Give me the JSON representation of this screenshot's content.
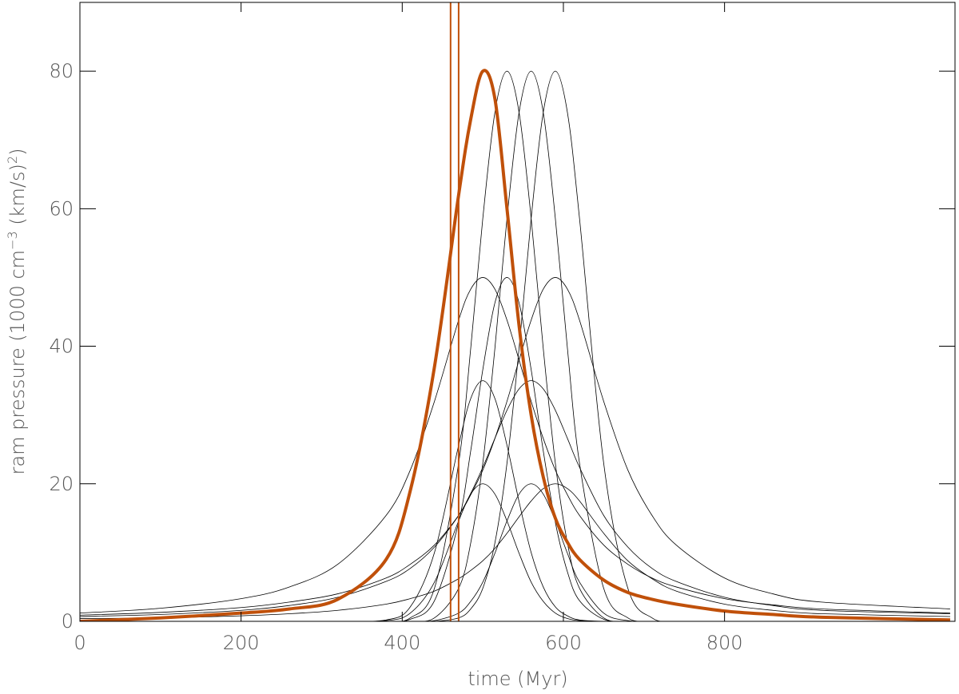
{
  "chart_data": {
    "type": "line",
    "xlabel": "time (Myr)",
    "ylabel_parts": [
      "ram pressure (1000 cm",
      "−3",
      " (km/s)",
      "2",
      ")"
    ],
    "x": [
      0,
      100,
      200,
      260,
      320,
      380,
      410,
      440,
      470,
      485,
      500,
      515,
      530,
      545,
      560,
      575,
      590,
      605,
      620,
      650,
      680,
      710,
      740,
      800,
      860,
      920,
      1080
    ],
    "xlim": [
      0,
      1086
    ],
    "xticks": [
      0,
      200,
      400,
      600,
      800
    ],
    "ylim": [
      0,
      90
    ],
    "yticks": [
      0,
      20,
      40,
      60,
      80
    ],
    "vlines": {
      "color": "#c0500a",
      "values": [
        460,
        470
      ]
    },
    "series": [
      {
        "color": "#000000",
        "linewidth": 0.8,
        "values": [
          0,
          0,
          0,
          0,
          0,
          0,
          0.5,
          4.8,
          23,
          39.7,
          58.6,
          74,
          80,
          74,
          58.6,
          39.7,
          23,
          11.4,
          4.8,
          0.5,
          0,
          0,
          0,
          0,
          0,
          0,
          0
        ]
      },
      {
        "color": "#000000",
        "linewidth": 0.8,
        "values": [
          0,
          0,
          0,
          0,
          0,
          0,
          0,
          0.5,
          4.8,
          11.4,
          23,
          39.7,
          58.6,
          74,
          80,
          74,
          58.6,
          39.7,
          23,
          4.8,
          0.5,
          0,
          0,
          0,
          0,
          0,
          0
        ]
      },
      {
        "color": "#000000",
        "linewidth": 0.8,
        "values": [
          0,
          0,
          0,
          0,
          0,
          0,
          0,
          0,
          0.5,
          1.8,
          4.8,
          11.4,
          23,
          39.7,
          58.6,
          74,
          80,
          74,
          58.6,
          23,
          4.8,
          0.5,
          0,
          0,
          0,
          0,
          0
        ]
      },
      {
        "color": "#000000",
        "linewidth": 0.8,
        "values": [
          1.2,
          1.9,
          3.3,
          5,
          8.3,
          15.4,
          22,
          32,
          43.8,
          48.3,
          50,
          48.3,
          43.8,
          38,
          32,
          26.6,
          22,
          18.4,
          15.4,
          11.1,
          8.3,
          6.3,
          5,
          3.3,
          2.4,
          1.8,
          1.2
        ]
      },
      {
        "color": "#000000",
        "linewidth": 0.8,
        "values": [
          0.9,
          1.3,
          2,
          2.8,
          4,
          6.3,
          8.3,
          11.1,
          15.4,
          18.4,
          22,
          26.6,
          32,
          38,
          43.8,
          48.3,
          50,
          48.3,
          43.8,
          32,
          22,
          15.4,
          11.1,
          6.3,
          4,
          2.8,
          1.8
        ]
      },
      {
        "color": "#000000",
        "linewidth": 0.8,
        "values": [
          0,
          0,
          0,
          0,
          0,
          0,
          0.3,
          3,
          14.4,
          24.8,
          36.6,
          46.3,
          50,
          46.3,
          36.6,
          24.8,
          14.4,
          7.2,
          3,
          0.3,
          0,
          0,
          0,
          0,
          0,
          0,
          0
        ]
      },
      {
        "color": "#000000",
        "linewidth": 0.8,
        "values": [
          0.7,
          1,
          1.6,
          2.3,
          3.5,
          5.8,
          7.7,
          10.8,
          15.4,
          18.6,
          22.4,
          26.6,
          30.7,
          33.8,
          35,
          33.8,
          30.7,
          26.6,
          22.4,
          15.4,
          10.8,
          7.7,
          5.8,
          3.5,
          2.3,
          1.6,
          1.1
        ]
      },
      {
        "color": "#000000",
        "linewidth": 0.8,
        "values": [
          0,
          0,
          0,
          0,
          0,
          0.2,
          2.1,
          10,
          25.6,
          32.4,
          35,
          32.4,
          25.6,
          17.4,
          10,
          5,
          2.1,
          0.8,
          0.2,
          0,
          0,
          0,
          0,
          0,
          0,
          0,
          0
        ]
      },
      {
        "color": "#000000",
        "linewidth": 0.8,
        "values": [
          0.4,
          0.5,
          0.8,
          1.1,
          1.6,
          2.5,
          3.3,
          4.4,
          6.2,
          7.4,
          8.8,
          10.6,
          12.8,
          15.2,
          17.5,
          19.3,
          20,
          19.3,
          17.5,
          12.8,
          8.8,
          6.2,
          4.4,
          2.5,
          1.6,
          1.1,
          0.7
        ]
      },
      {
        "color": "#000000",
        "linewidth": 0.8,
        "values": [
          0,
          0,
          0,
          0,
          0,
          0.1,
          1.2,
          5.7,
          14.6,
          18.5,
          20,
          18.5,
          14.6,
          9.9,
          5.7,
          2.9,
          1.2,
          0.4,
          0.1,
          0,
          0,
          0,
          0,
          0,
          0,
          0,
          0
        ]
      },
      {
        "color": "#000000",
        "linewidth": 0.8,
        "values": [
          0,
          0,
          0,
          0,
          0,
          0,
          0,
          0.1,
          1.2,
          2.9,
          5.7,
          9.9,
          14.6,
          18.5,
          20,
          18.5,
          14.6,
          9.9,
          5.7,
          1.2,
          0.1,
          0,
          0,
          0,
          0,
          0,
          0
        ]
      },
      {
        "color": "#c0500a",
        "linewidth": 4,
        "values": [
          0,
          0.5,
          1.2,
          1.8,
          3.2,
          9,
          19,
          37,
          62,
          73,
          80,
          76,
          60,
          43,
          30,
          21,
          15,
          11.5,
          9,
          6,
          4.2,
          3.2,
          2.5,
          1.5,
          1,
          0.6,
          0.2
        ]
      }
    ]
  }
}
